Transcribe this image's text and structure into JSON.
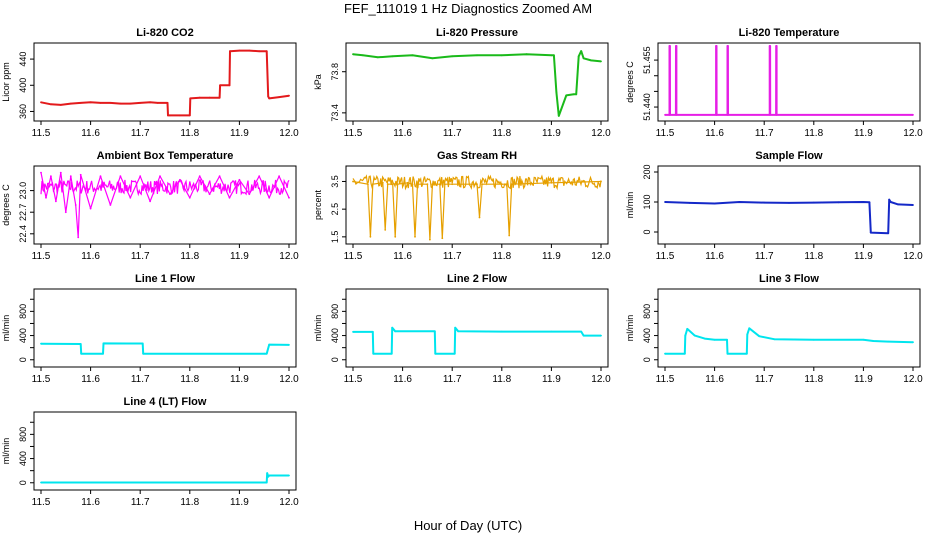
{
  "page": {
    "title": "FEF_111019  1 Hz Diagnostics Zoomed AM",
    "xlabel": "Hour of Day (UTC)"
  },
  "chart_data": [
    {
      "type": "line",
      "title": "Li-820 CO2",
      "ylabel": "Licor ppm",
      "color": "#e31a1c",
      "xlim": [
        11.5,
        12.0
      ],
      "ylim": [
        350,
        460
      ],
      "xticks": [
        "11.5",
        "11.6",
        "11.7",
        "11.8",
        "11.9",
        "12.0"
      ],
      "yticks": [
        360,
        400,
        440
      ],
      "x": [
        11.5,
        11.52,
        11.54,
        11.56,
        11.58,
        11.6,
        11.62,
        11.64,
        11.66,
        11.68,
        11.7,
        11.72,
        11.735,
        11.755,
        11.756,
        11.76,
        11.78,
        11.8,
        11.801,
        11.82,
        11.84,
        11.86,
        11.861,
        11.88,
        11.881,
        11.9,
        11.92,
        11.94,
        11.955,
        11.958,
        11.96,
        11.98,
        12.0
      ],
      "y": [
        374,
        371,
        370,
        372,
        373,
        374,
        373,
        373,
        372,
        372,
        373,
        374,
        373,
        373,
        354,
        354,
        354,
        354,
        380,
        381,
        381,
        381,
        400,
        400,
        452,
        453,
        453,
        452,
        452,
        383,
        380,
        382,
        384
      ]
    },
    {
      "type": "line",
      "title": "Li-820 Pressure",
      "ylabel": "kPa",
      "color": "#1aba1a",
      "xlim": [
        11.5,
        12.0
      ],
      "ylim": [
        73.35,
        74.05
      ],
      "xticks": [
        "11.5",
        "11.6",
        "11.7",
        "11.8",
        "11.9",
        "12.0"
      ],
      "yticks": [
        "73.4",
        "73.8"
      ],
      "x": [
        11.5,
        11.52,
        11.55,
        11.58,
        11.62,
        11.66,
        11.7,
        11.75,
        11.8,
        11.85,
        11.9,
        11.905,
        11.91,
        11.915,
        11.93,
        11.945,
        11.95,
        11.955,
        11.96,
        11.965,
        11.98,
        12.0
      ],
      "y": [
        73.97,
        73.96,
        73.94,
        73.95,
        73.96,
        73.93,
        73.95,
        73.96,
        73.96,
        73.97,
        73.96,
        73.96,
        73.6,
        73.37,
        73.57,
        73.58,
        73.58,
        73.95,
        74.0,
        73.93,
        73.91,
        73.9
      ]
    },
    {
      "type": "line",
      "title": "Li-820 Temperature",
      "ylabel": "degrees C",
      "color": "#e61ee6",
      "xlim": [
        11.5,
        12.0
      ],
      "ylim": [
        51.4365,
        51.4595
      ],
      "xticks": [
        "11.5",
        "11.6",
        "11.7",
        "11.8",
        "11.9",
        "12.0"
      ],
      "yticks": [
        "51.440",
        "51.455"
      ],
      "yticks_all": [
        51.44,
        51.445,
        51.45,
        51.455
      ],
      "x": [
        11.5,
        11.509,
        11.5091,
        11.5099,
        11.51,
        11.522,
        11.5221,
        11.5229,
        11.523,
        11.603,
        11.6031,
        11.6039,
        11.604,
        11.626,
        11.6261,
        11.6269,
        11.627,
        11.711,
        11.7111,
        11.7119,
        11.712,
        11.724,
        11.7241,
        11.7249,
        11.725,
        12.0
      ],
      "y": [
        51.4375,
        51.4375,
        51.4595,
        51.4595,
        51.4375,
        51.4375,
        51.4595,
        51.4595,
        51.4375,
        51.4375,
        51.4595,
        51.4595,
        51.4375,
        51.4375,
        51.4595,
        51.4595,
        51.4375,
        51.4375,
        51.4595,
        51.4595,
        51.4375,
        51.4375,
        51.4595,
        51.4595,
        51.4375,
        51.4375
      ]
    },
    {
      "type": "line",
      "title": "Ambient Box Temperature",
      "ylabel": "degrees C",
      "color": "#ff00ff",
      "xlim": [
        11.5,
        12.0
      ],
      "ylim": [
        22.3,
        23.3
      ],
      "xticks": [
        "11.5",
        "11.6",
        "11.7",
        "11.8",
        "11.9",
        "12.0"
      ],
      "yticks": [
        "22.4",
        "22.7",
        "23.0"
      ],
      "band": [
        22.95,
        23.15
      ],
      "x": [
        11.5,
        11.51,
        11.52,
        11.53,
        11.54,
        11.55,
        11.56,
        11.57,
        11.575,
        11.58,
        11.6,
        11.62,
        11.64,
        11.66,
        11.68,
        11.7,
        11.72,
        11.74,
        11.76,
        11.78,
        11.8,
        11.82,
        11.84,
        11.86,
        11.88,
        11.9,
        11.92,
        11.94,
        11.96,
        11.98,
        12.0
      ],
      "y": [
        23.25,
        22.9,
        23.2,
        22.85,
        23.25,
        22.7,
        23.2,
        22.8,
        22.35,
        23.22,
        22.75,
        23.2,
        22.8,
        23.2,
        22.9,
        23.2,
        22.85,
        23.2,
        22.95,
        23.15,
        22.9,
        23.2,
        22.95,
        23.2,
        22.9,
        23.15,
        22.95,
        23.2,
        22.9,
        23.2,
        22.9
      ]
    },
    {
      "type": "line",
      "title": "Gas Stream RH",
      "ylabel": "percent",
      "color": "#e6a000",
      "xlim": [
        11.5,
        12.0
      ],
      "ylim": [
        1.35,
        3.95
      ],
      "xticks": [
        "11.5",
        "11.6",
        "11.7",
        "11.8",
        "11.9",
        "12.0"
      ],
      "yticks": [
        "1.5",
        "2.5",
        "3.5"
      ],
      "band": [
        3.25,
        3.7
      ],
      "x": [
        11.5,
        11.53,
        11.535,
        11.54,
        11.56,
        11.565,
        11.57,
        11.58,
        11.585,
        11.59,
        11.61,
        11.62,
        11.625,
        11.63,
        11.65,
        11.655,
        11.66,
        11.675,
        11.68,
        11.685,
        11.7,
        11.75,
        11.755,
        11.76,
        11.8,
        11.81,
        11.815,
        11.82,
        11.9,
        12.0
      ],
      "y": [
        3.5,
        3.4,
        1.5,
        3.4,
        3.45,
        1.75,
        3.4,
        3.4,
        1.5,
        3.4,
        3.45,
        3.4,
        1.5,
        3.4,
        3.4,
        1.4,
        3.4,
        3.4,
        1.45,
        3.4,
        3.4,
        3.4,
        2.2,
        3.4,
        3.4,
        3.4,
        1.55,
        3.4,
        3.45,
        3.5
      ]
    },
    {
      "type": "line",
      "title": "Sample Flow",
      "ylabel": "ml/min",
      "color": "#1428c8",
      "xlim": [
        11.5,
        12.0
      ],
      "ylim": [
        -30,
        210
      ],
      "xticks": [
        "11.5",
        "11.6",
        "11.7",
        "11.8",
        "11.9",
        "12.0"
      ],
      "yticks": [
        0,
        100,
        200
      ],
      "x": [
        11.5,
        11.55,
        11.6,
        11.65,
        11.7,
        11.75,
        11.8,
        11.85,
        11.9,
        11.912,
        11.915,
        11.95,
        11.952,
        11.955,
        11.97,
        12.0
      ],
      "y": [
        100,
        97,
        95,
        100,
        98,
        97,
        98,
        99,
        100,
        99,
        -2,
        -4,
        108,
        100,
        92,
        90
      ]
    },
    {
      "type": "line",
      "title": "Line 1 Flow",
      "ylabel": "ml/min",
      "color": "#00e5ee",
      "xlim": [
        11.5,
        12.0
      ],
      "ylim": [
        -70,
        1120
      ],
      "xticks": [
        "11.5",
        "11.6",
        "11.7",
        "11.8",
        "11.9",
        "12.0"
      ],
      "yticks": [
        0,
        400,
        800
      ],
      "yticks_all": [
        0,
        200,
        400,
        600,
        800,
        1000
      ],
      "x": [
        11.5,
        11.58,
        11.581,
        11.625,
        11.626,
        11.705,
        11.706,
        11.95,
        11.955,
        11.96,
        12.0
      ],
      "y": [
        265,
        260,
        100,
        100,
        270,
        268,
        100,
        100,
        100,
        250,
        245
      ]
    },
    {
      "type": "line",
      "title": "Line 2 Flow",
      "ylabel": "ml/min",
      "color": "#00e5ee",
      "xlim": [
        11.5,
        12.0
      ],
      "ylim": [
        -70,
        1120
      ],
      "xticks": [
        "11.5",
        "11.6",
        "11.7",
        "11.8",
        "11.9",
        "12.0"
      ],
      "yticks": [
        0,
        400,
        800
      ],
      "yticks_all": [
        0,
        200,
        400,
        600,
        800,
        1000
      ],
      "x": [
        11.5,
        11.54,
        11.541,
        11.578,
        11.579,
        11.585,
        11.665,
        11.666,
        11.705,
        11.706,
        11.712,
        11.8,
        11.9,
        11.96,
        11.965,
        12.0
      ],
      "y": [
        460,
        460,
        100,
        100,
        530,
        470,
        470,
        100,
        100,
        530,
        470,
        465,
        465,
        465,
        400,
        400
      ]
    },
    {
      "type": "line",
      "title": "Line 3 Flow",
      "ylabel": "ml/min",
      "color": "#00e5ee",
      "xlim": [
        11.5,
        12.0
      ],
      "ylim": [
        -70,
        1120
      ],
      "xticks": [
        "11.5",
        "11.6",
        "11.7",
        "11.8",
        "11.9",
        "12.0"
      ],
      "yticks": [
        0,
        400,
        800
      ],
      "yticks_all": [
        0,
        200,
        400,
        600,
        800,
        1000
      ],
      "x": [
        11.5,
        11.54,
        11.541,
        11.545,
        11.56,
        11.58,
        11.6,
        11.625,
        11.626,
        11.665,
        11.666,
        11.67,
        11.69,
        11.72,
        11.8,
        11.9,
        11.92,
        11.95,
        12.0
      ],
      "y": [
        100,
        100,
        400,
        510,
        400,
        350,
        330,
        330,
        100,
        100,
        420,
        520,
        390,
        340,
        330,
        330,
        310,
        300,
        290
      ]
    },
    {
      "type": "line",
      "title": "Line 4 (LT) Flow",
      "ylabel": "ml/min",
      "color": "#00e5ee",
      "xlim": [
        11.5,
        12.0
      ],
      "ylim": [
        -70,
        1120
      ],
      "xticks": [
        "11.5",
        "11.6",
        "11.7",
        "11.8",
        "11.9",
        "12.0"
      ],
      "yticks": [
        0,
        400,
        800
      ],
      "yticks_all": [
        0,
        200,
        400,
        600,
        800,
        1000
      ],
      "x": [
        11.5,
        11.6,
        11.7,
        11.8,
        11.9,
        11.955,
        11.956,
        11.958,
        11.96,
        12.0
      ],
      "y": [
        5,
        5,
        5,
        5,
        5,
        5,
        160,
        100,
        120,
        120
      ]
    }
  ]
}
